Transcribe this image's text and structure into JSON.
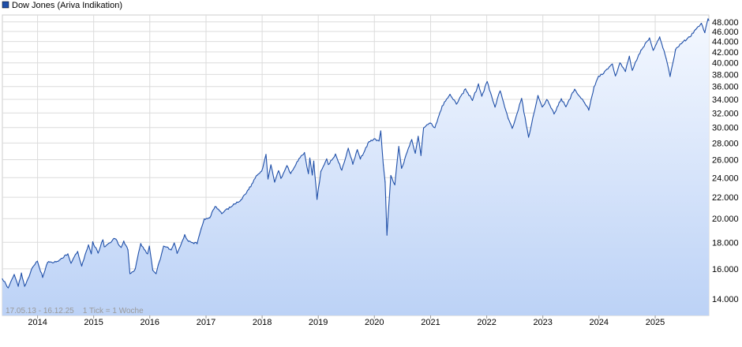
{
  "legend": {
    "label": "Dow Jones (Ariva Indikation)",
    "swatch_color": "#1f4fa8"
  },
  "footer_info": "17.05.13 - 16.12.25    1 Tick = 1 Woche",
  "colors": {
    "line": "#1f4fa8",
    "fill_top": "#f4f8ff",
    "fill_bottom": "#bcd2f6",
    "grid": "#dcdcdc",
    "text": "#000000"
  },
  "chart_data": {
    "type": "area",
    "title": "Dow Jones (Ariva Indikation)",
    "xlabel": "",
    "ylabel": "",
    "y_scale": "log",
    "ylim": [
      13000,
      49500
    ],
    "xlim": [
      "2013-05-17",
      "2025-12-16"
    ],
    "grid": true,
    "legend_position": "top-left",
    "x_ticks": [
      {
        "label": "2014",
        "date": "2014-01-01"
      },
      {
        "label": "2015",
        "date": "2015-01-01"
      },
      {
        "label": "2016",
        "date": "2016-01-01"
      },
      {
        "label": "2017",
        "date": "2017-01-01"
      },
      {
        "label": "2018",
        "date": "2018-01-01"
      },
      {
        "label": "2019",
        "date": "2019-01-01"
      },
      {
        "label": "2020",
        "date": "2020-01-01"
      },
      {
        "label": "2021",
        "date": "2021-01-01"
      },
      {
        "label": "2022",
        "date": "2022-01-01"
      },
      {
        "label": "2023",
        "date": "2023-01-01"
      },
      {
        "label": "2024",
        "date": "2024-01-01"
      },
      {
        "label": "2025",
        "date": "2025-01-01"
      }
    ],
    "y_ticks": [
      {
        "label": "14.000",
        "value": 14000
      },
      {
        "label": "16.000",
        "value": 16000
      },
      {
        "label": "18.000",
        "value": 18000
      },
      {
        "label": "20.000",
        "value": 20000
      },
      {
        "label": "22.000",
        "value": 22000
      },
      {
        "label": "24.000",
        "value": 24000
      },
      {
        "label": "26.000",
        "value": 26000
      },
      {
        "label": "28.000",
        "value": 28000
      },
      {
        "label": "30.000",
        "value": 30000
      },
      {
        "label": "32.000",
        "value": 32000
      },
      {
        "label": "34.000",
        "value": 34000
      },
      {
        "label": "36.000",
        "value": 36000
      },
      {
        "label": "38.000",
        "value": 38000
      },
      {
        "label": "40.000",
        "value": 40000
      },
      {
        "label": "42.000",
        "value": 42000
      },
      {
        "label": "44.000",
        "value": 44000
      },
      {
        "label": "46.000",
        "value": 46000
      },
      {
        "label": "48.000",
        "value": 48000
      }
    ],
    "series": [
      {
        "points": [
          [
            "2013-05-17",
            15300
          ],
          [
            "2013-06-24",
            14700
          ],
          [
            "2013-08-02",
            15600
          ],
          [
            "2013-08-28",
            14800
          ],
          [
            "2013-09-18",
            15700
          ],
          [
            "2013-10-09",
            14800
          ],
          [
            "2013-11-29",
            16100
          ],
          [
            "2013-12-31",
            16550
          ],
          [
            "2014-02-03",
            15400
          ],
          [
            "2014-03-07",
            16450
          ],
          [
            "2014-05-01",
            16500
          ],
          [
            "2014-07-17",
            17100
          ],
          [
            "2014-08-07",
            16400
          ],
          [
            "2014-09-19",
            17280
          ],
          [
            "2014-10-15",
            16200
          ],
          [
            "2014-11-28",
            17800
          ],
          [
            "2014-12-16",
            17100
          ],
          [
            "2014-12-26",
            18050
          ],
          [
            "2015-01-30",
            17160
          ],
          [
            "2015-03-02",
            18200
          ],
          [
            "2015-03-11",
            17650
          ],
          [
            "2015-05-19",
            18300
          ],
          [
            "2015-06-29",
            17600
          ],
          [
            "2015-07-16",
            18100
          ],
          [
            "2015-08-12",
            17400
          ],
          [
            "2015-08-25",
            15660
          ],
          [
            "2015-09-29",
            16000
          ],
          [
            "2015-11-03",
            17900
          ],
          [
            "2015-12-18",
            17100
          ],
          [
            "2015-12-29",
            17700
          ],
          [
            "2016-01-20",
            15900
          ],
          [
            "2016-02-11",
            15660
          ],
          [
            "2016-03-31",
            17700
          ],
          [
            "2016-05-19",
            17400
          ],
          [
            "2016-06-08",
            17950
          ],
          [
            "2016-06-27",
            17140
          ],
          [
            "2016-08-15",
            18630
          ],
          [
            "2016-09-09",
            18080
          ],
          [
            "2016-11-04",
            17890
          ],
          [
            "2016-11-30",
            19120
          ],
          [
            "2016-12-20",
            19970
          ],
          [
            "2017-01-25",
            20070
          ],
          [
            "2017-03-01",
            21110
          ],
          [
            "2017-04-13",
            20450
          ],
          [
            "2017-06-30",
            21350
          ],
          [
            "2017-08-17",
            21750
          ],
          [
            "2017-10-05",
            22770
          ],
          [
            "2017-11-30",
            24270
          ],
          [
            "2017-12-29",
            24720
          ],
          [
            "2018-01-26",
            26620
          ],
          [
            "2018-02-08",
            23860
          ],
          [
            "2018-02-27",
            25410
          ],
          [
            "2018-03-23",
            23530
          ],
          [
            "2018-04-18",
            24750
          ],
          [
            "2018-05-03",
            23930
          ],
          [
            "2018-06-11",
            25320
          ],
          [
            "2018-07-06",
            24450
          ],
          [
            "2018-08-29",
            26120
          ],
          [
            "2018-10-03",
            26830
          ],
          [
            "2018-10-29",
            24440
          ],
          [
            "2018-11-07",
            26190
          ],
          [
            "2018-11-23",
            24290
          ],
          [
            "2018-12-03",
            25830
          ],
          [
            "2018-12-24",
            21790
          ],
          [
            "2019-01-18",
            24700
          ],
          [
            "2019-02-25",
            26090
          ],
          [
            "2019-03-08",
            25450
          ],
          [
            "2019-04-23",
            26660
          ],
          [
            "2019-06-03",
            24820
          ],
          [
            "2019-07-15",
            27360
          ],
          [
            "2019-08-14",
            25480
          ],
          [
            "2019-09-12",
            27180
          ],
          [
            "2019-10-02",
            26080
          ],
          [
            "2019-11-27",
            28160
          ],
          [
            "2019-12-31",
            28540
          ],
          [
            "2020-01-31",
            28260
          ],
          [
            "2020-02-12",
            29550
          ],
          [
            "2020-02-28",
            25400
          ],
          [
            "2020-03-11",
            23550
          ],
          [
            "2020-03-23",
            18590
          ],
          [
            "2020-04-17",
            24240
          ],
          [
            "2020-05-13",
            23250
          ],
          [
            "2020-06-08",
            27570
          ],
          [
            "2020-06-26",
            25020
          ],
          [
            "2020-08-31",
            28430
          ],
          [
            "2020-09-23",
            26760
          ],
          [
            "2020-10-12",
            28840
          ],
          [
            "2020-10-30",
            26500
          ],
          [
            "2020-11-16",
            29950
          ],
          [
            "2020-12-31",
            30600
          ],
          [
            "2021-01-29",
            29980
          ],
          [
            "2021-03-17",
            33020
          ],
          [
            "2021-05-07",
            34780
          ],
          [
            "2021-06-18",
            33290
          ],
          [
            "2021-08-16",
            35630
          ],
          [
            "2021-09-30",
            33840
          ],
          [
            "2021-11-08",
            36430
          ],
          [
            "2021-11-30",
            34480
          ],
          [
            "2022-01-04",
            36800
          ],
          [
            "2022-02-24",
            32850
          ],
          [
            "2022-03-29",
            35300
          ],
          [
            "2022-05-20",
            31260
          ],
          [
            "2022-06-16",
            29890
          ],
          [
            "2022-08-16",
            34150
          ],
          [
            "2022-09-30",
            28730
          ],
          [
            "2022-11-30",
            34590
          ],
          [
            "2022-12-28",
            32880
          ],
          [
            "2023-01-27",
            33980
          ],
          [
            "2023-03-15",
            31870
          ],
          [
            "2023-05-01",
            34100
          ],
          [
            "2023-05-31",
            32900
          ],
          [
            "2023-07-27",
            35580
          ],
          [
            "2023-09-29",
            33500
          ],
          [
            "2023-10-27",
            32420
          ],
          [
            "2023-11-30",
            35950
          ],
          [
            "2023-12-29",
            37690
          ],
          [
            "2024-01-31",
            38150
          ],
          [
            "2024-03-28",
            39800
          ],
          [
            "2024-04-17",
            37750
          ],
          [
            "2024-05-17",
            40000
          ],
          [
            "2024-06-21",
            38500
          ],
          [
            "2024-07-17",
            41200
          ],
          [
            "2024-08-05",
            38700
          ],
          [
            "2024-09-30",
            42300
          ],
          [
            "2024-11-25",
            44700
          ],
          [
            "2024-12-19",
            42300
          ],
          [
            "2025-01-30",
            44900
          ],
          [
            "2025-03-13",
            40800
          ],
          [
            "2025-04-08",
            37650
          ],
          [
            "2025-05-13",
            42400
          ],
          [
            "2025-06-27",
            43800
          ],
          [
            "2025-08-14",
            44900
          ],
          [
            "2025-09-22",
            46400
          ],
          [
            "2025-10-28",
            47700
          ],
          [
            "2025-11-20",
            45750
          ],
          [
            "2025-12-11",
            48650
          ],
          [
            "2025-12-16",
            48300
          ]
        ]
      }
    ]
  }
}
